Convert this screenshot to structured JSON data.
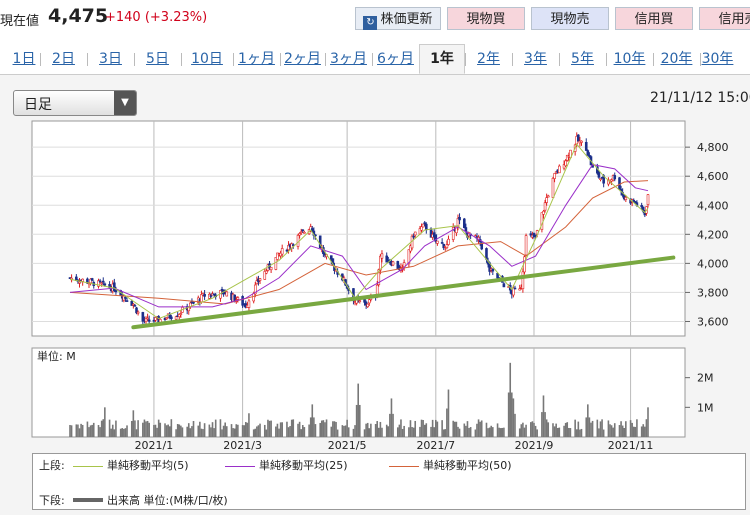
{
  "quote": {
    "price_label": "現在値",
    "price": "4,475",
    "change": "+140 (+3.23%)"
  },
  "buttons": {
    "chart": "株価更新",
    "chart_icon": "refresh-icon",
    "spot_buy": "現物買",
    "spot_sell": "現物売",
    "margin_buy": "信用買",
    "margin_sell": "信用売"
  },
  "periods": [
    "1日",
    "2日",
    "3日",
    "5日",
    "10日",
    "1ヶ月",
    "2ヶ月",
    "3ヶ月",
    "6ヶ月",
    "1年",
    "2年",
    "3年",
    "5年",
    "10年",
    "20年",
    "30年"
  ],
  "active_period": "1年",
  "interval_select": "日足",
  "timestamp": "21/11/12 15:00",
  "colors": {
    "up": "#e02020",
    "down": "#1c2f8a",
    "ma5": "#a8c44a",
    "ma25": "#9a2fc9",
    "ma50": "#d4633a",
    "trend": "#79a841",
    "volume": "#777777"
  },
  "chart_data": [
    {
      "type": "candlestick",
      "ylim": [
        3500,
        4980
      ],
      "yticks": [
        "3,600",
        "3,800",
        "4,000",
        "4,200",
        "4,400",
        "4,600",
        "4,800"
      ],
      "ytick_values": [
        3600,
        3800,
        4000,
        4200,
        4400,
        4600,
        4800
      ],
      "xticks": [
        "2021/1",
        "2021/3",
        "2021/5",
        "2021/7",
        "2021/9",
        "2021/11"
      ],
      "x_start": "2020-11-12",
      "x_end": "2021-11-12",
      "tick_dates": [
        "2021-01-04",
        "2021-03-01",
        "2021-05-06",
        "2021-07-01",
        "2021-09-01",
        "2021-11-01"
      ],
      "trendline": {
        "start": [
          "2020-12-22",
          3560
        ],
        "end": [
          "2021-11-28",
          4040
        ]
      },
      "close_points": [
        [
          "2020-11-12",
          3900
        ],
        [
          "2020-11-26",
          3870
        ],
        [
          "2020-12-10",
          3830
        ],
        [
          "2020-12-22",
          3720
        ],
        [
          "2020-12-28",
          3600
        ],
        [
          "2021-01-07",
          3610
        ],
        [
          "2021-01-20",
          3660
        ],
        [
          "2021-02-05",
          3780
        ],
        [
          "2021-02-18",
          3800
        ],
        [
          "2021-03-03",
          3710
        ],
        [
          "2021-03-12",
          3900
        ],
        [
          "2021-03-24",
          4060
        ],
        [
          "2021-04-07",
          4200
        ],
        [
          "2021-04-13",
          4260
        ],
        [
          "2021-04-22",
          4050
        ],
        [
          "2021-05-03",
          3900
        ],
        [
          "2021-05-11",
          3740
        ],
        [
          "2021-05-18",
          3720
        ],
        [
          "2021-05-24",
          3780
        ],
        [
          "2021-05-27",
          4050
        ],
        [
          "2021-06-03",
          4010
        ],
        [
          "2021-06-10",
          3950
        ],
        [
          "2021-06-17",
          4200
        ],
        [
          "2021-06-24",
          4260
        ],
        [
          "2021-07-01",
          4150
        ],
        [
          "2021-07-08",
          4120
        ],
        [
          "2021-07-15",
          4300
        ],
        [
          "2021-07-21",
          4200
        ],
        [
          "2021-07-29",
          4150
        ],
        [
          "2021-08-04",
          3950
        ],
        [
          "2021-08-11",
          3880
        ],
        [
          "2021-08-18",
          3800
        ],
        [
          "2021-08-24",
          3850
        ],
        [
          "2021-08-27",
          4180
        ],
        [
          "2021-09-02",
          4180
        ],
        [
          "2021-09-09",
          4450
        ],
        [
          "2021-09-14",
          4600
        ],
        [
          "2021-09-21",
          4720
        ],
        [
          "2021-09-28",
          4850
        ],
        [
          "2021-10-04",
          4800
        ],
        [
          "2021-10-08",
          4650
        ],
        [
          "2021-10-15",
          4560
        ],
        [
          "2021-10-22",
          4600
        ],
        [
          "2021-10-28",
          4450
        ],
        [
          "2021-11-04",
          4420
        ],
        [
          "2021-11-10",
          4340
        ],
        [
          "2021-11-12",
          4475
        ]
      ],
      "ma5": [
        [
          "2020-11-12",
          3890
        ],
        [
          "2020-12-10",
          3830
        ],
        [
          "2021-01-07",
          3620
        ],
        [
          "2021-02-10",
          3760
        ],
        [
          "2021-03-24",
          4020
        ],
        [
          "2021-04-13",
          4230
        ],
        [
          "2021-05-11",
          3760
        ],
        [
          "2021-05-27",
          3960
        ],
        [
          "2021-06-24",
          4230
        ],
        [
          "2021-07-15",
          4260
        ],
        [
          "2021-08-18",
          3820
        ],
        [
          "2021-09-02",
          4170
        ],
        [
          "2021-09-28",
          4820
        ],
        [
          "2021-10-15",
          4600
        ],
        [
          "2021-11-10",
          4350
        ],
        [
          "2021-11-12",
          4380
        ]
      ],
      "ma25": [
        [
          "2020-11-12",
          3800
        ],
        [
          "2020-12-10",
          3830
        ],
        [
          "2021-01-07",
          3700
        ],
        [
          "2021-02-10",
          3700
        ],
        [
          "2021-03-03",
          3760
        ],
        [
          "2021-03-24",
          3900
        ],
        [
          "2021-04-13",
          4120
        ],
        [
          "2021-05-03",
          4050
        ],
        [
          "2021-05-18",
          3820
        ],
        [
          "2021-06-10",
          3960
        ],
        [
          "2021-06-24",
          4120
        ],
        [
          "2021-07-15",
          4250
        ],
        [
          "2021-08-04",
          4120
        ],
        [
          "2021-08-18",
          3980
        ],
        [
          "2021-09-02",
          4050
        ],
        [
          "2021-09-21",
          4400
        ],
        [
          "2021-10-08",
          4680
        ],
        [
          "2021-10-22",
          4650
        ],
        [
          "2021-11-04",
          4520
        ],
        [
          "2021-11-12",
          4500
        ]
      ],
      "ma50": [
        [
          "2020-11-12",
          3800
        ],
        [
          "2021-01-07",
          3760
        ],
        [
          "2021-02-18",
          3720
        ],
        [
          "2021-03-24",
          3820
        ],
        [
          "2021-04-22",
          4000
        ],
        [
          "2021-05-18",
          3920
        ],
        [
          "2021-06-17",
          3980
        ],
        [
          "2021-07-15",
          4120
        ],
        [
          "2021-08-11",
          4150
        ],
        [
          "2021-08-27",
          4050
        ],
        [
          "2021-09-21",
          4250
        ],
        [
          "2021-10-08",
          4450
        ],
        [
          "2021-10-28",
          4560
        ],
        [
          "2021-11-12",
          4570
        ]
      ]
    },
    {
      "type": "bar",
      "unit_label": "単位: M",
      "ylim": [
        0,
        3
      ],
      "yticks": [
        "1M",
        "2M"
      ],
      "ytick_values": [
        1,
        2
      ],
      "volume_points": [
        [
          "2020-11-20",
          0.3
        ],
        [
          "2020-12-04",
          1.0
        ],
        [
          "2020-12-22",
          0.9
        ],
        [
          "2021-01-15",
          0.6
        ],
        [
          "2021-02-10",
          0.5
        ],
        [
          "2021-03-05",
          0.8
        ],
        [
          "2021-04-14",
          1.1
        ],
        [
          "2021-05-13",
          1.8
        ],
        [
          "2021-06-03",
          1.3
        ],
        [
          "2021-07-09",
          1.6
        ],
        [
          "2021-08-17",
          2.5
        ],
        [
          "2021-08-19",
          1.3
        ],
        [
          "2021-09-07",
          1.4
        ],
        [
          "2021-10-05",
          1.1
        ],
        [
          "2021-11-12",
          1.0
        ]
      ]
    }
  ],
  "legend": {
    "upper_label": "上段:",
    "lower_label": "下段:",
    "ma5": "単純移動平均(5)",
    "ma25": "単純移動平均(25)",
    "ma50": "単純移動平均(50)",
    "volume": "出来高 単位:(M株/口/枚)"
  }
}
